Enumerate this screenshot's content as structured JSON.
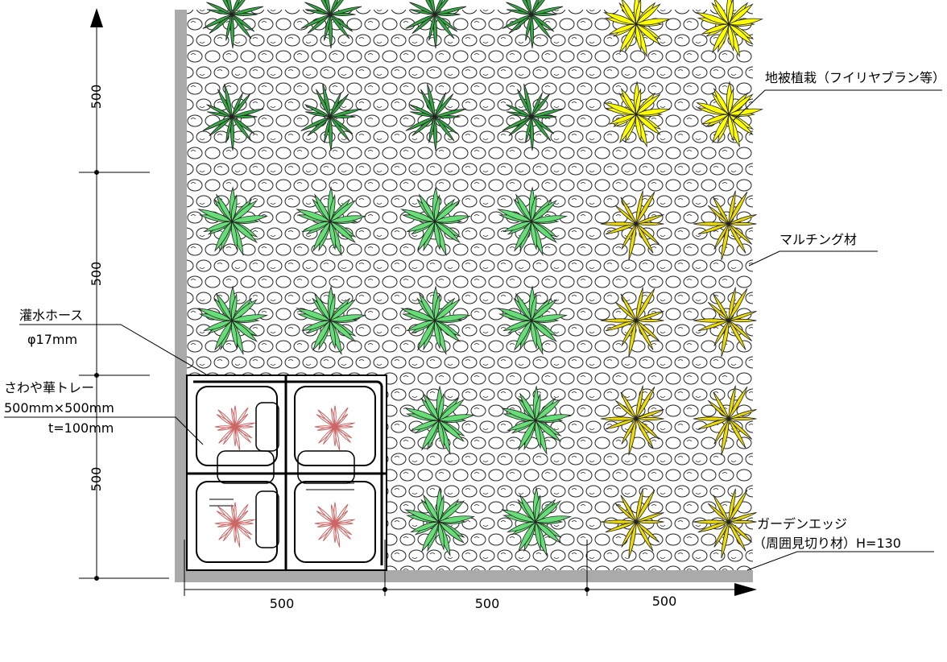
{
  "labels": {
    "ground_cover": "地被植栽（フイリヤブラン等）",
    "mulching": "マルチング材",
    "hose_name": "灌水ホース",
    "hose_size": "φ17mm",
    "tray_name": "さわや華トレー",
    "tray_size": "500mm×500mm",
    "tray_thickness": "t=100mm",
    "edge_name": "ガーデンエッジ",
    "edge_detail": "（周囲見切り材）H=130"
  },
  "dimensions": {
    "vertical": [
      "500",
      "500",
      "500"
    ],
    "horizontal": [
      "500",
      "500",
      "500"
    ]
  },
  "colors": {
    "light_green": "#66dd77",
    "dark_green": "#33aa44",
    "yellow": "#eedd00",
    "bright_yellow": "#ffff00",
    "red_plant": "#cc6666",
    "edge_gray": "#aaaaaa"
  }
}
